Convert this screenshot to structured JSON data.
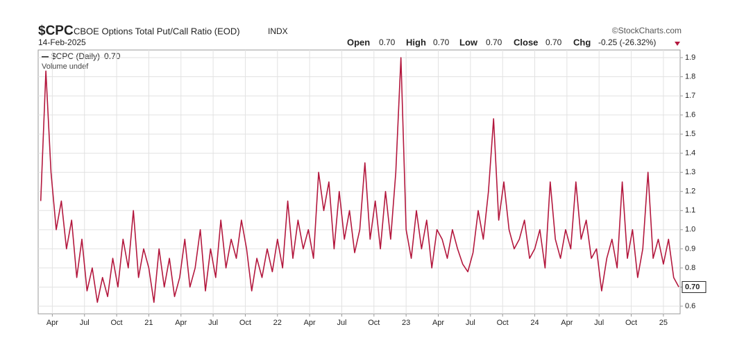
{
  "chart_data": {
    "type": "line",
    "symbol": "$CPC",
    "title": "CBOE Options Total Put/Call Ratio (EOD)",
    "exchange": "INDX",
    "date": "14-Feb-2025",
    "source": "©StockCharts.com",
    "quote": [
      {
        "label": "Open",
        "value": "0.70"
      },
      {
        "label": "High",
        "value": "0.70"
      },
      {
        "label": "Low",
        "value": "0.70"
      },
      {
        "label": "Close",
        "value": "0.70"
      },
      {
        "label": "Chg",
        "value": "-0.25 (-26.32%)"
      }
    ],
    "volume_note": "Volume undef",
    "x": [
      2020.16,
      2020.2,
      2020.24,
      2020.28,
      2020.32,
      2020.36,
      2020.4,
      2020.44,
      2020.48,
      2020.52,
      2020.56,
      2020.6,
      2020.64,
      2020.68,
      2020.72,
      2020.76,
      2020.8,
      2020.84,
      2020.88,
      2020.92,
      2020.96,
      2021,
      2021.04,
      2021.08,
      2021.12,
      2021.16,
      2021.2,
      2021.24,
      2021.28,
      2021.32,
      2021.36,
      2021.4,
      2021.44,
      2021.48,
      2021.52,
      2021.56,
      2021.6,
      2021.64,
      2021.68,
      2021.72,
      2021.76,
      2021.8,
      2021.84,
      2021.88,
      2021.92,
      2021.96,
      2022,
      2022.04,
      2022.08,
      2022.12,
      2022.16,
      2022.2,
      2022.24,
      2022.28,
      2022.32,
      2022.36,
      2022.4,
      2022.44,
      2022.48,
      2022.52,
      2022.56,
      2022.6,
      2022.64,
      2022.68,
      2022.72,
      2022.76,
      2022.8,
      2022.84,
      2022.88,
      2022.92,
      2022.96,
      2023,
      2023.04,
      2023.08,
      2023.12,
      2023.16,
      2023.2,
      2023.24,
      2023.28,
      2023.32,
      2023.36,
      2023.4,
      2023.44,
      2023.48,
      2023.52,
      2023.56,
      2023.6,
      2023.64,
      2023.68,
      2023.72,
      2023.76,
      2023.8,
      2023.84,
      2023.88,
      2023.92,
      2023.96,
      2024,
      2024.04,
      2024.08,
      2024.12,
      2024.16,
      2024.2,
      2024.24,
      2024.28,
      2024.32,
      2024.36,
      2024.4,
      2024.44,
      2024.48,
      2024.52,
      2024.56,
      2024.6,
      2024.64,
      2024.68,
      2024.72,
      2024.76,
      2024.8,
      2024.84,
      2024.88,
      2024.92,
      2024.96,
      2025,
      2025.04,
      2025.08,
      2025.12
    ],
    "series": [
      {
        "name": "$CPC (Daily)",
        "color": "#b3173d",
        "last_label": "0.70",
        "values": [
          1.15,
          1.83,
          1.3,
          1.0,
          1.15,
          0.9,
          1.05,
          0.75,
          0.95,
          0.68,
          0.8,
          0.62,
          0.75,
          0.65,
          0.85,
          0.7,
          0.95,
          0.8,
          1.1,
          0.75,
          0.9,
          0.8,
          0.62,
          0.9,
          0.7,
          0.85,
          0.65,
          0.75,
          0.95,
          0.7,
          0.8,
          1.0,
          0.68,
          0.9,
          0.75,
          1.05,
          0.8,
          0.95,
          0.85,
          1.05,
          0.9,
          0.68,
          0.85,
          0.75,
          0.9,
          0.78,
          0.95,
          0.8,
          1.15,
          0.85,
          1.05,
          0.9,
          1.0,
          0.85,
          1.3,
          1.1,
          1.25,
          0.9,
          1.2,
          0.95,
          1.1,
          0.88,
          1.0,
          1.35,
          0.95,
          1.15,
          0.9,
          1.2,
          0.95,
          1.3,
          1.9,
          1.0,
          0.85,
          1.1,
          0.9,
          1.05,
          0.8,
          1.0,
          0.95,
          0.85,
          1.0,
          0.9,
          0.82,
          0.78,
          0.88,
          1.1,
          0.95,
          1.2,
          1.58,
          1.05,
          1.25,
          1.0,
          0.9,
          0.95,
          1.05,
          0.85,
          0.9,
          1.0,
          0.8,
          1.25,
          0.95,
          0.85,
          1.0,
          0.9,
          1.25,
          0.95,
          1.05,
          0.85,
          0.9,
          0.68,
          0.85,
          0.95,
          0.8,
          1.25,
          0.85,
          1.0,
          0.75,
          0.9,
          1.3,
          0.85,
          0.95,
          0.82,
          0.95,
          0.75,
          0.7
        ]
      }
    ],
    "xlim": [
      2020.14,
      2025.13
    ],
    "xticks": [
      {
        "value": 2020.25,
        "label": "Apr"
      },
      {
        "value": 2020.5,
        "label": "Jul"
      },
      {
        "value": 2020.75,
        "label": "Oct"
      },
      {
        "value": 2021,
        "label": "21"
      },
      {
        "value": 2021.25,
        "label": "Apr"
      },
      {
        "value": 2021.5,
        "label": "Jul"
      },
      {
        "value": 2021.75,
        "label": "Oct"
      },
      {
        "value": 2022,
        "label": "22"
      },
      {
        "value": 2022.25,
        "label": "Apr"
      },
      {
        "value": 2022.5,
        "label": "Jul"
      },
      {
        "value": 2022.75,
        "label": "Oct"
      },
      {
        "value": 2023,
        "label": "23"
      },
      {
        "value": 2023.25,
        "label": "Apr"
      },
      {
        "value": 2023.5,
        "label": "Jul"
      },
      {
        "value": 2023.75,
        "label": "Oct"
      },
      {
        "value": 2024,
        "label": "24"
      },
      {
        "value": 2024.25,
        "label": "Apr"
      },
      {
        "value": 2024.5,
        "label": "Jul"
      },
      {
        "value": 2024.75,
        "label": "Oct"
      },
      {
        "value": 2025,
        "label": "25"
      }
    ],
    "ylim": [
      0.56,
      1.94
    ],
    "yticks": [
      0.6,
      0.7,
      0.8,
      0.9,
      {
        "value": 1,
        "label": "1.0"
      },
      1.1,
      1.2,
      1.3,
      1.4,
      1.5,
      1.6,
      1.7,
      1.8,
      1.9
    ],
    "grid": true
  }
}
